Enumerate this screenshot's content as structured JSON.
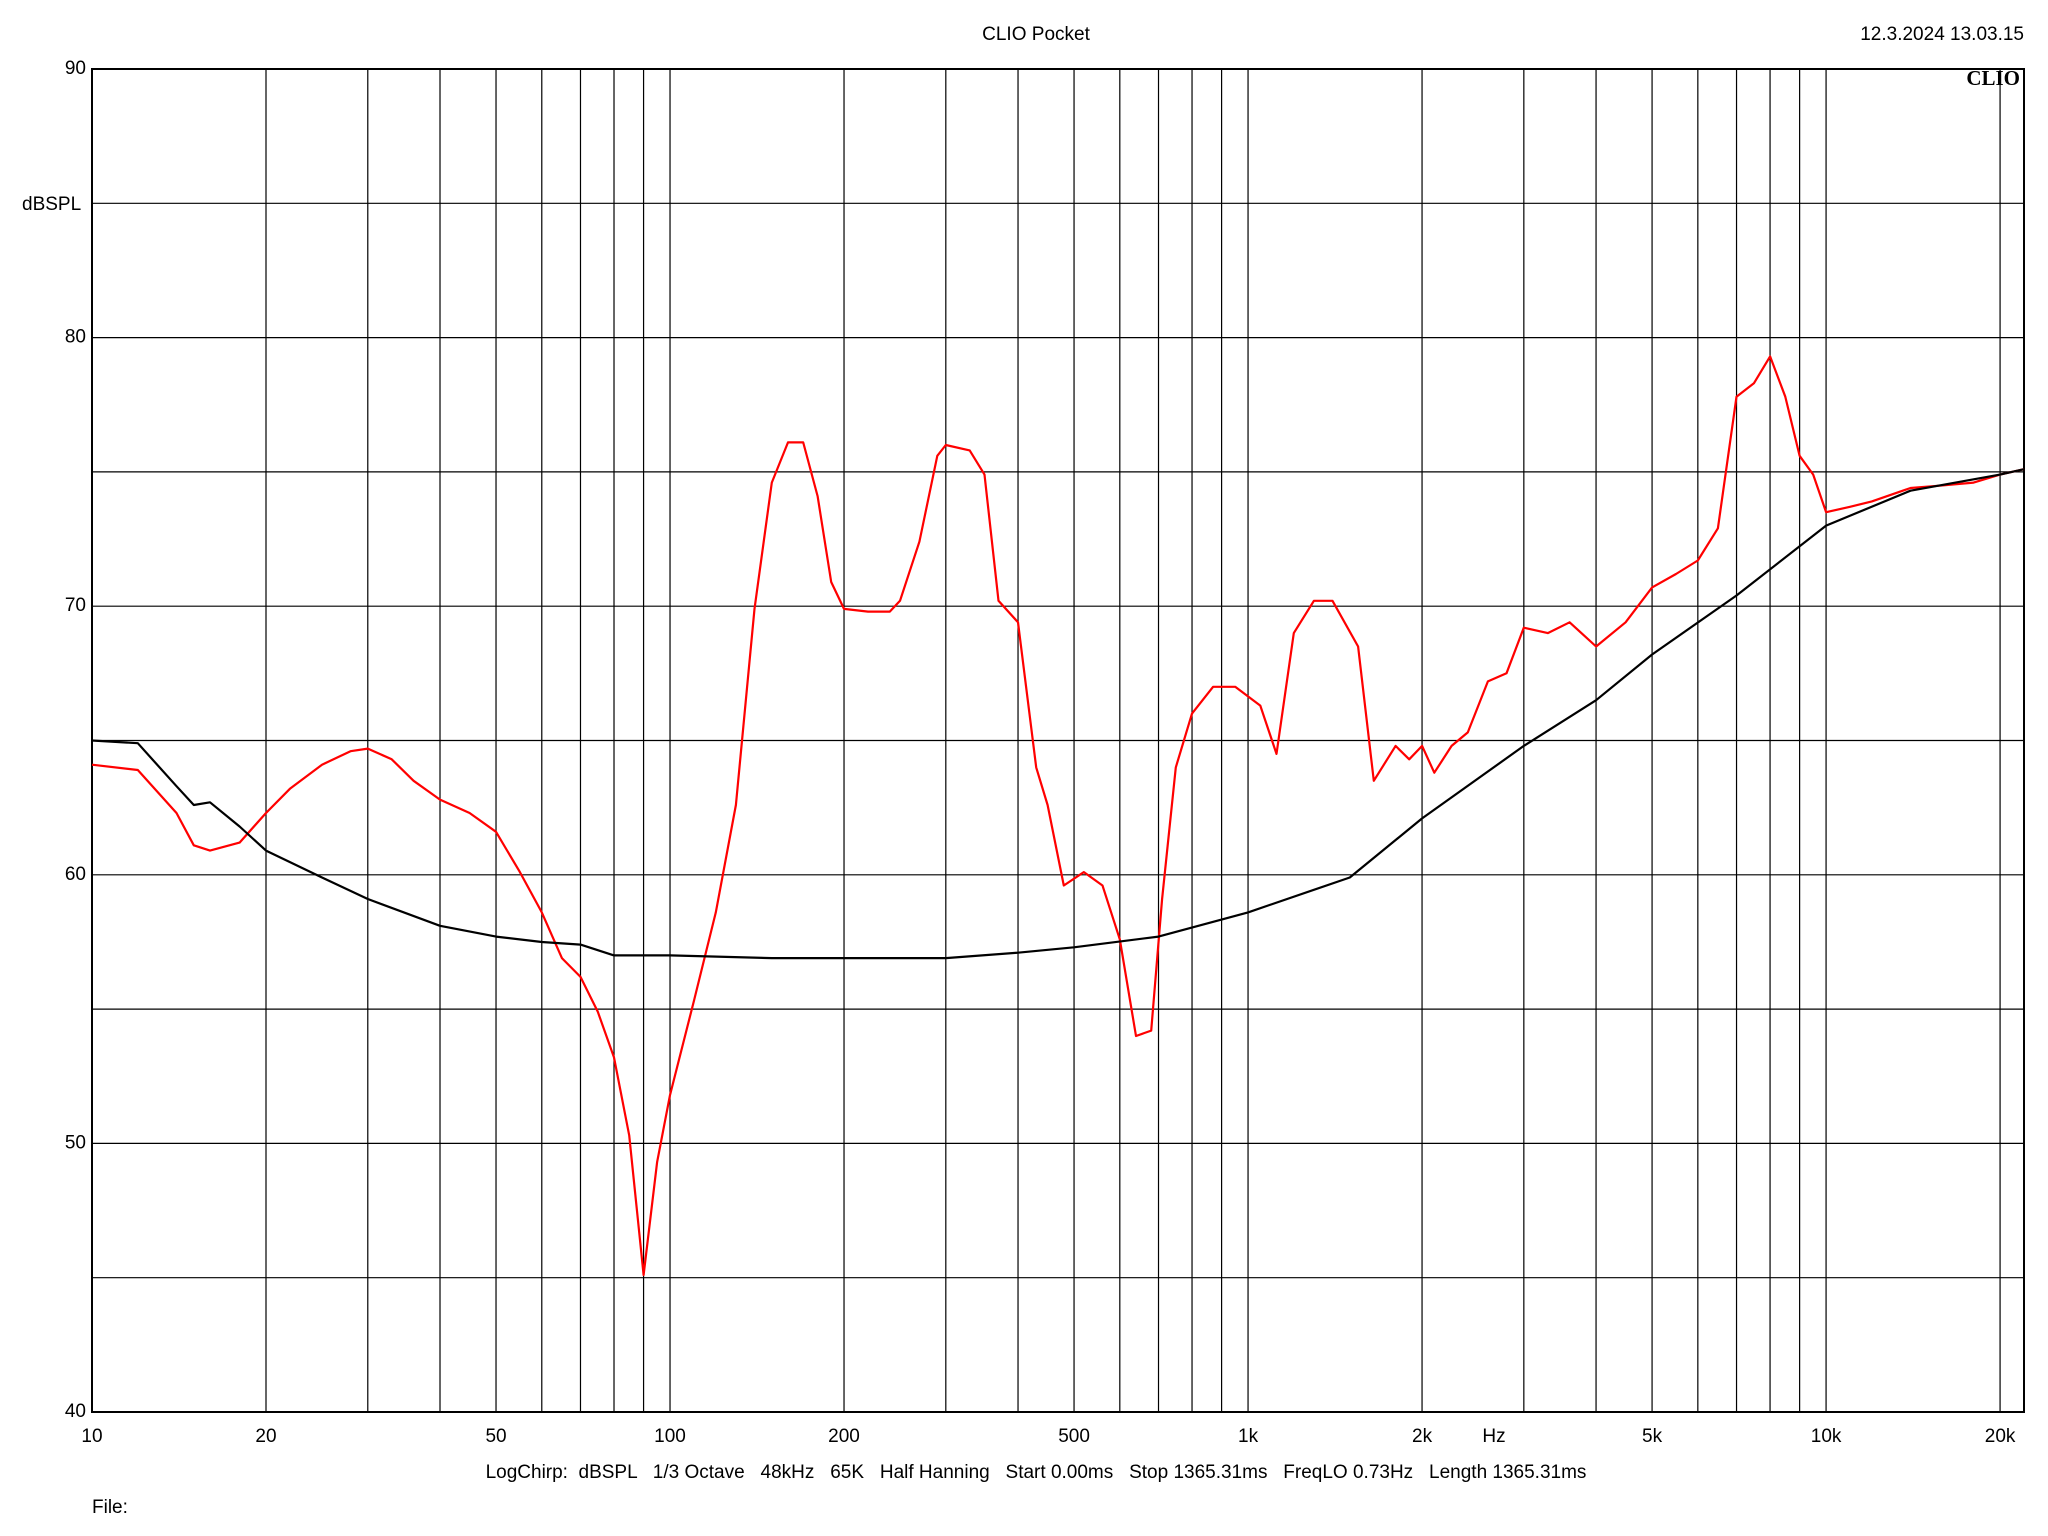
{
  "chart_data": {
    "type": "line",
    "title": "CLIO Pocket",
    "timestamp": "12.3.2024 13.03.15",
    "logo": "CLIO",
    "y_label": "dBSPL",
    "x_label": "Hz",
    "footer": "LogChirp:  dBSPL   1/3 Octave   48kHz   65K   Half Hanning   Start 0.00ms   Stop 1365.31ms   FreqLO 0.73Hz   Length 1365.31ms",
    "file_label": "File:",
    "x_log": true,
    "grid": true,
    "xlim": [
      10,
      22000
    ],
    "ylim": [
      40,
      90
    ],
    "xticks": [
      10,
      20,
      50,
      100,
      200,
      500,
      {
        "value": 1000,
        "label": "1k"
      },
      {
        "value": 2000,
        "label": "2k"
      },
      {
        "value": 5000,
        "label": "5k"
      },
      {
        "value": 10000,
        "label": "10k"
      },
      {
        "value": 20000,
        "label": "20k"
      }
    ],
    "x_minor_grid": [
      30,
      40,
      60,
      70,
      80,
      90,
      300,
      400,
      600,
      700,
      800,
      900,
      3000,
      4000,
      6000,
      7000,
      8000,
      9000
    ],
    "yticks": [
      40,
      50,
      60,
      70,
      80,
      90
    ],
    "y_minor_grid": [
      45,
      55,
      65,
      75,
      85
    ],
    "series": [
      {
        "color": "#ff0000",
        "x": [
          10,
          12,
          14,
          15,
          16,
          18,
          20,
          22,
          25,
          28,
          30,
          33,
          36,
          40,
          45,
          50,
          55,
          60,
          65,
          70,
          75,
          80,
          85,
          90,
          95,
          100,
          110,
          120,
          130,
          140,
          150,
          160,
          170,
          180,
          190,
          200,
          220,
          240,
          250,
          270,
          290,
          300,
          330,
          350,
          370,
          400,
          430,
          450,
          480,
          520,
          560,
          600,
          640,
          680,
          710,
          750,
          800,
          870,
          950,
          1050,
          1120,
          1200,
          1300,
          1400,
          1550,
          1650,
          1800,
          1900,
          2000,
          2100,
          2250,
          2400,
          2600,
          2800,
          3000,
          3300,
          3600,
          4000,
          4500,
          5000,
          5500,
          6000,
          6500,
          7000,
          7500,
          8000,
          8500,
          9000,
          9500,
          10000,
          11000,
          12000,
          14000,
          16000,
          18000,
          20000,
          22000
        ],
        "values": [
          64.1,
          63.9,
          62.3,
          61.1,
          60.9,
          61.2,
          62.3,
          63.2,
          64.1,
          64.6,
          64.7,
          64.3,
          63.5,
          62.8,
          62.3,
          61.6,
          60.1,
          58.6,
          56.9,
          56.2,
          54.9,
          53.2,
          50.3,
          45.1,
          49.3,
          51.8,
          55.3,
          58.6,
          62.6,
          69.9,
          74.6,
          76.1,
          76.1,
          74.1,
          70.9,
          69.9,
          69.8,
          69.8,
          70.2,
          72.4,
          75.6,
          76.0,
          75.8,
          74.9,
          70.2,
          69.4,
          64.0,
          62.6,
          59.6,
          60.1,
          59.6,
          57.6,
          54.0,
          54.2,
          59.1,
          64.0,
          66.0,
          67.0,
          67.0,
          66.3,
          64.5,
          69.0,
          70.2,
          70.2,
          68.5,
          63.5,
          64.8,
          64.3,
          64.8,
          63.8,
          64.8,
          65.3,
          67.2,
          67.5,
          69.2,
          69.0,
          69.4,
          68.5,
          69.4,
          70.7,
          71.2,
          71.7,
          72.9,
          77.8,
          78.3,
          79.3,
          77.8,
          75.6,
          74.9,
          73.5,
          73.7,
          73.9,
          74.4,
          74.5,
          74.6,
          74.9,
          75.1
        ]
      },
      {
        "color": "#000000",
        "x": [
          10,
          12,
          14,
          15,
          16,
          18,
          20,
          25,
          30,
          40,
          50,
          60,
          70,
          80,
          100,
          150,
          200,
          300,
          400,
          500,
          700,
          1000,
          1500,
          2000,
          3000,
          4000,
          5000,
          7000,
          10000,
          14000,
          20000,
          22000
        ],
        "values": [
          65.0,
          64.9,
          63.3,
          62.6,
          62.7,
          61.8,
          60.9,
          59.9,
          59.1,
          58.1,
          57.7,
          57.5,
          57.4,
          57.0,
          57.0,
          56.9,
          56.9,
          56.9,
          57.1,
          57.3,
          57.7,
          58.6,
          59.9,
          62.1,
          64.8,
          66.5,
          68.2,
          70.4,
          73.0,
          74.3,
          74.9,
          75.1
        ]
      }
    ]
  }
}
